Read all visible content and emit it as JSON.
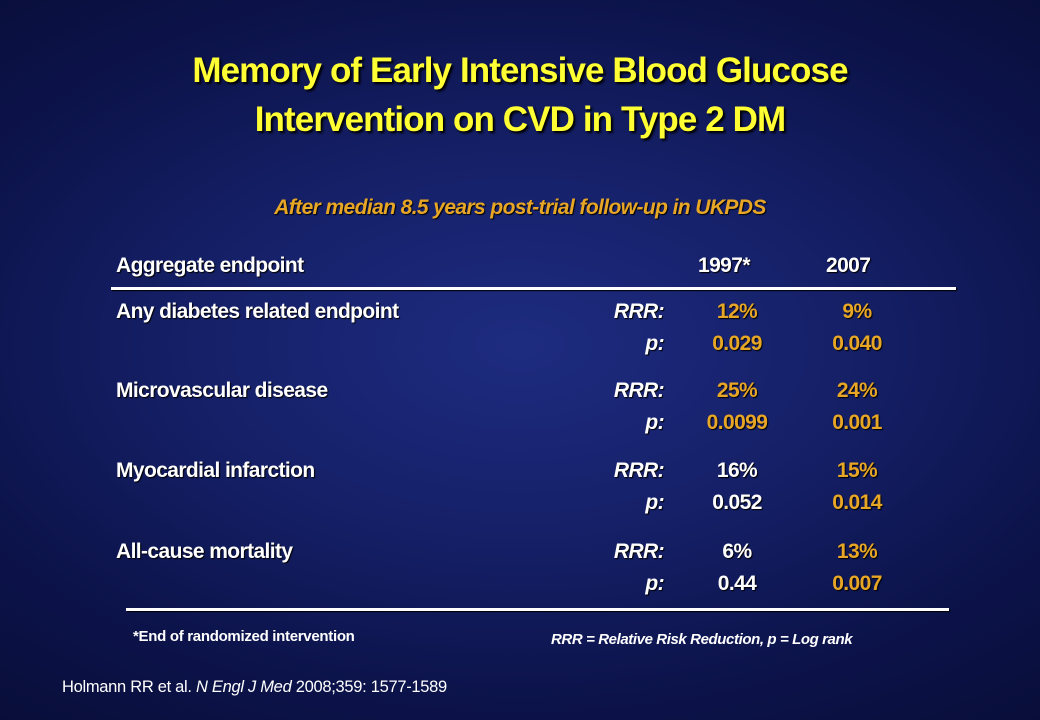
{
  "title": {
    "line1": "Memory of Early Intensive Blood Glucose",
    "line2": "Intervention on CVD in Type 2 DM"
  },
  "subtitle": "After median 8.5 years post-trial follow-up in UKPDS",
  "table": {
    "header": {
      "label": "Aggregate endpoint",
      "year1": "1997*",
      "year2": "2007"
    },
    "rows": [
      {
        "label": "Any diabetes related endpoint",
        "rrr_label": "RRR:",
        "p_label": "p:",
        "rrr_1997": "12%",
        "rrr_2007": "9%",
        "p_1997": "0.029",
        "p_2007": "0.040"
      },
      {
        "label": "Microvascular disease",
        "rrr_label": "RRR:",
        "p_label": "p:",
        "rrr_1997": "25%",
        "rrr_2007": "24%",
        "p_1997": "0.0099",
        "p_2007": "0.001"
      },
      {
        "label": "Myocardial infarction",
        "rrr_label": "RRR:",
        "p_label": "p:",
        "rrr_1997": "16%",
        "rrr_2007": "15%",
        "p_1997": "0.052",
        "p_2007": "0.014"
      },
      {
        "label": "All-cause mortality",
        "rrr_label": "RRR:",
        "p_label": "p:",
        "rrr_1997": "6%",
        "rrr_2007": "13%",
        "p_1997": "0.44",
        "p_2007": "0.007"
      }
    ]
  },
  "footnotes": {
    "left": "*End of randomized intervention",
    "right": "RRR = Relative Risk Reduction, p = Log rank"
  },
  "citation": {
    "authors": "Holmann RR et al. ",
    "journal": "N Engl J Med",
    "details": " 2008;359: 1577-1589"
  },
  "colors": {
    "title": "#ffff33",
    "highlight": "#e7a626",
    "text": "#ffffff",
    "background": "#16216a"
  }
}
